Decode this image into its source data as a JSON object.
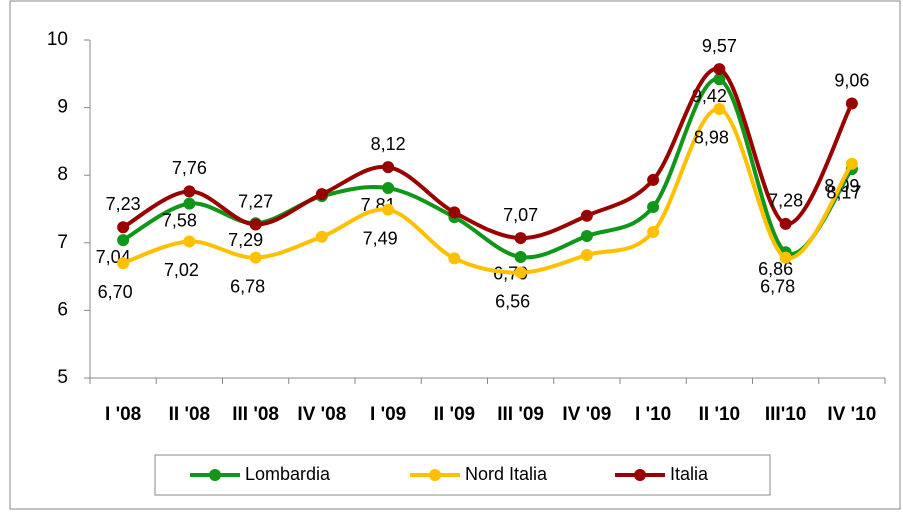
{
  "chart_data": {
    "type": "line",
    "categories": [
      "I  '08",
      "II '08",
      "III '08",
      "IV '08",
      "I '09",
      "II '09",
      "III '09",
      "IV '09",
      "I   '10",
      "II '10",
      "III'10",
      "IV '10"
    ],
    "series": [
      {
        "name": "Lombardia",
        "color": "#109618",
        "values": [
          7.04,
          7.58,
          7.29,
          7.69,
          7.81,
          7.38,
          6.79,
          7.1,
          7.53,
          9.42,
          6.86,
          8.09
        ],
        "value_labels": [
          "7,04",
          "7,58",
          "7,29",
          null,
          "7,81",
          null,
          "6,79",
          null,
          null,
          "9,42",
          "6,86",
          "8,09"
        ]
      },
      {
        "name": "Nord Italia",
        "color": "#ffc000",
        "values": [
          6.7,
          7.02,
          6.78,
          7.09,
          7.49,
          6.77,
          6.56,
          6.82,
          7.16,
          8.98,
          6.78,
          8.17
        ],
        "value_labels": [
          "6,70",
          "7,02",
          "6,78",
          null,
          "7,49",
          null,
          "6,56",
          null,
          null,
          "8,98",
          "6,78",
          "8,17"
        ]
      },
      {
        "name": "Italia",
        "color": "#990000",
        "values": [
          7.23,
          7.76,
          7.27,
          7.72,
          8.12,
          7.45,
          7.07,
          7.4,
          7.93,
          9.57,
          7.28,
          9.06
        ],
        "value_labels": [
          "7,23",
          "7,76",
          "7,27",
          null,
          "8,12",
          null,
          "7,07",
          null,
          null,
          "9,57",
          "7,28",
          "9,06"
        ]
      }
    ],
    "ylim": [
      5,
      10
    ],
    "yticks": [
      5,
      6,
      7,
      8,
      9,
      10
    ],
    "grid": false,
    "legend": "bottom"
  }
}
